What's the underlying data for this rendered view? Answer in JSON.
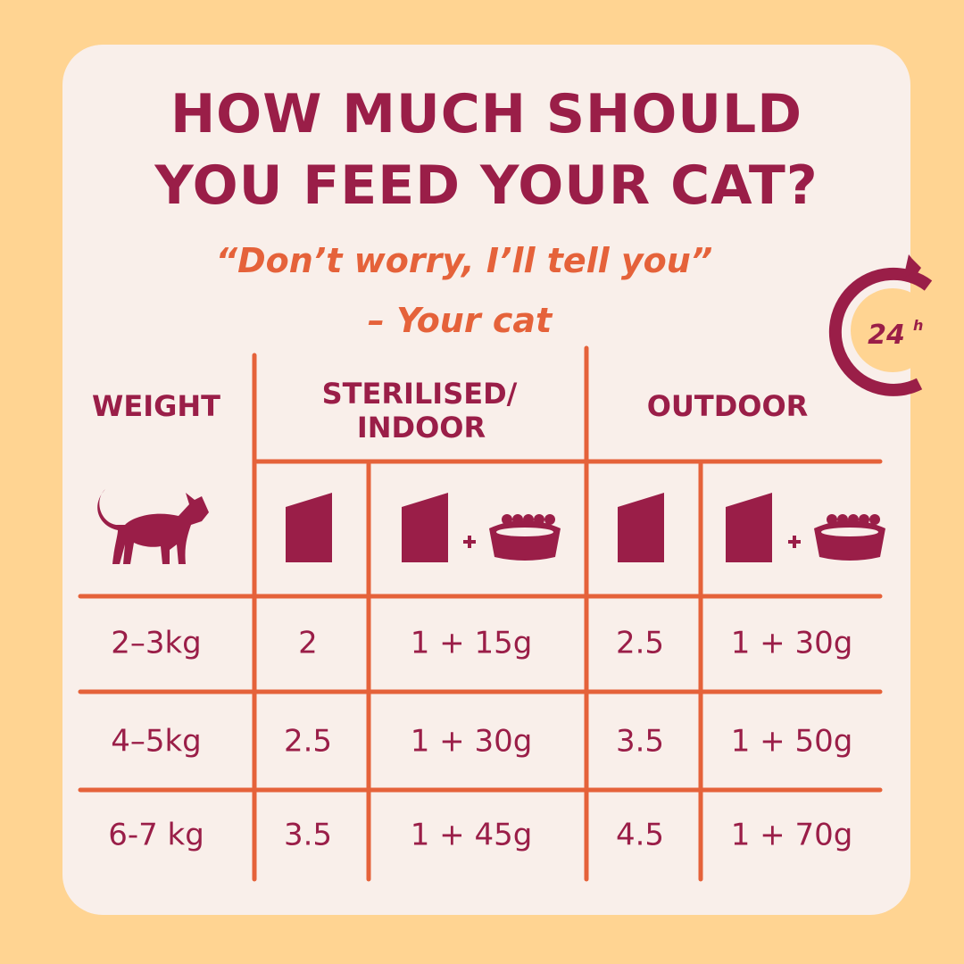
{
  "header": {
    "title": [
      "HOW MUCH SHOULD",
      "YOU FEED YOUR CAT?"
    ],
    "quote": "“Don’t worry, I’ll tell you”",
    "attribution": "– Your cat"
  },
  "badge": {
    "number": "24",
    "unit": "h"
  },
  "table": {
    "headers": {
      "weight": "WEIGHT",
      "sterilised": [
        "STERILISED/",
        "INDOOR"
      ],
      "outdoor": "OUTDOOR"
    },
    "rows": [
      [
        "2–3kg",
        "2",
        "1 + 15g",
        "2.5",
        "1 + 30g"
      ],
      [
        "4–5kg",
        "2.5",
        "1 + 30g",
        "3.5",
        "1 + 50g"
      ],
      [
        "6-7 kg",
        "3.5",
        "1 + 45g",
        "4.5",
        "1 + 70g"
      ]
    ]
  }
}
